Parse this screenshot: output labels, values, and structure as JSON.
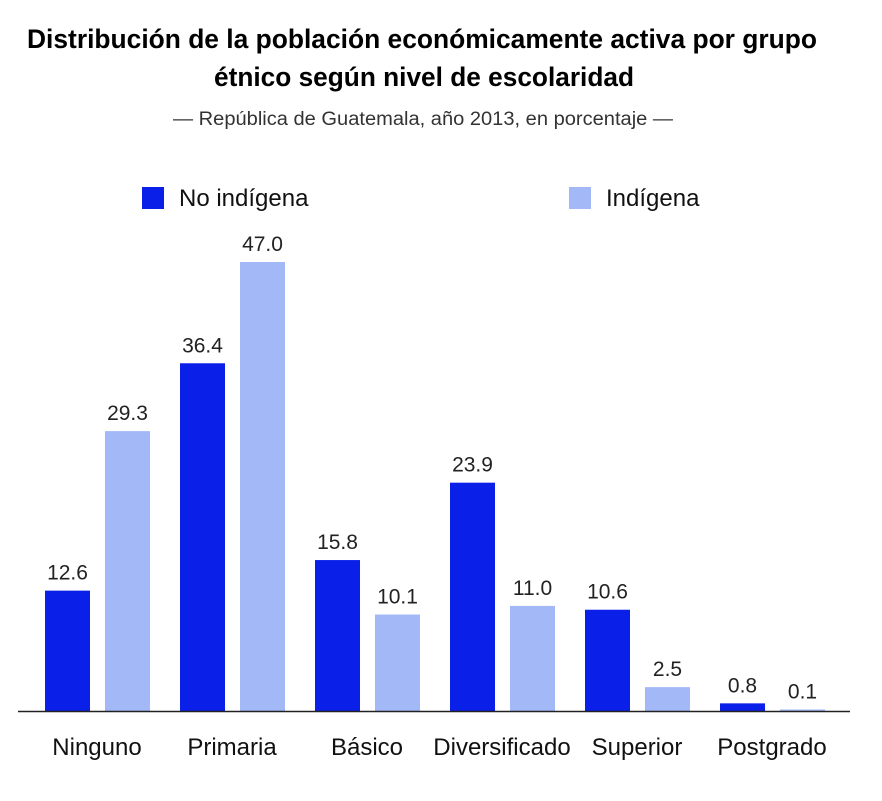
{
  "chart_data": {
    "type": "bar",
    "title": "Distribución de la población económicamente activa por grupo étnico según nivel de escolaridad",
    "title_lines": [
      "Distribución de la población económicamente activa por grupo",
      "étnico según nivel de escolaridad"
    ],
    "subtitle": "—  República de Guatemala, año 2013, en porcentaje  —",
    "xlabel": "",
    "ylabel": "",
    "ylim": [
      0,
      47
    ],
    "grid": false,
    "legend_position": "top",
    "categories": [
      "Ninguno",
      "Primaria",
      "Básico",
      "Diversificado",
      "Superior",
      "Postgrado"
    ],
    "series": [
      {
        "name": "No indígena",
        "color": "#0a1fe8",
        "values": [
          12.6,
          36.4,
          15.8,
          23.9,
          10.6,
          0.8
        ]
      },
      {
        "name": "Indígena",
        "color": "#a3b9f7",
        "values": [
          29.3,
          47.0,
          10.1,
          11.0,
          2.5,
          0.1
        ]
      }
    ]
  }
}
